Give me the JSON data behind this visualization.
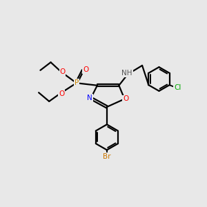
{
  "background_color": "#e8e8e8",
  "bond_color": "#000000",
  "atom_colors": {
    "P": "#cc8800",
    "O": "#ff0000",
    "N": "#0000ff",
    "Br": "#cc7700",
    "Cl": "#00aa00",
    "H": "#555555"
  },
  "figsize": [
    3.0,
    3.0
  ],
  "dpi": 100
}
